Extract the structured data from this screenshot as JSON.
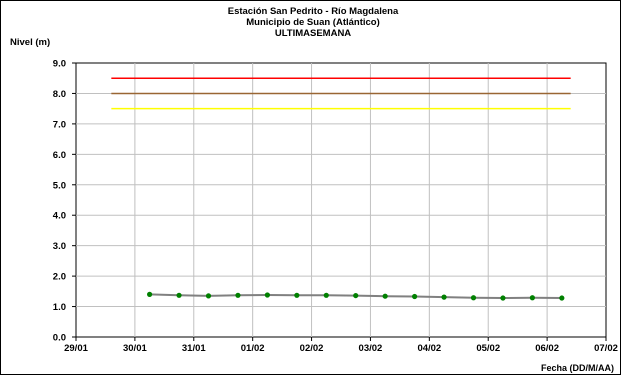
{
  "chart_data": {
    "type": "line",
    "title": [
      "Estación San Pedrito - Río Magdalena",
      "Municipio de Suan (Atlántico)",
      "ULTIMASEMANA"
    ],
    "ylabel": "Nivel (m)",
    "xlabel": "Fecha (DD/M/AA)",
    "ylim": [
      0,
      9
    ],
    "yticks": [
      "0.0",
      "1.0",
      "2.0",
      "3.0",
      "4.0",
      "5.0",
      "6.0",
      "7.0",
      "8.0",
      "9.0"
    ],
    "xlim": [
      0,
      9
    ],
    "xtick_labels": [
      "29/01",
      "30/01",
      "31/01",
      "01/02",
      "02/02",
      "03/02",
      "04/02",
      "05/02",
      "06/02",
      "07/02"
    ],
    "grid": true,
    "thresholds": [
      {
        "value": 8.5,
        "color": "#ff0000",
        "x_range": [
          0.6,
          8.4
        ]
      },
      {
        "value": 8.0,
        "color": "#996633",
        "x_range": [
          0.6,
          8.4
        ]
      },
      {
        "value": 7.5,
        "color": "#ffff00",
        "x_range": [
          0.6,
          8.4
        ]
      }
    ],
    "series": [
      {
        "color": "#008000",
        "line_color": "#808080",
        "x": [
          1.25,
          1.75,
          2.25,
          2.75,
          3.25,
          3.75,
          4.25,
          4.75,
          5.25,
          5.75,
          6.25,
          6.75,
          7.25,
          7.75,
          8.25
        ],
        "values": [
          1.4,
          1.37,
          1.35,
          1.37,
          1.38,
          1.37,
          1.37,
          1.36,
          1.34,
          1.33,
          1.31,
          1.29,
          1.28,
          1.29,
          1.28
        ]
      }
    ]
  }
}
